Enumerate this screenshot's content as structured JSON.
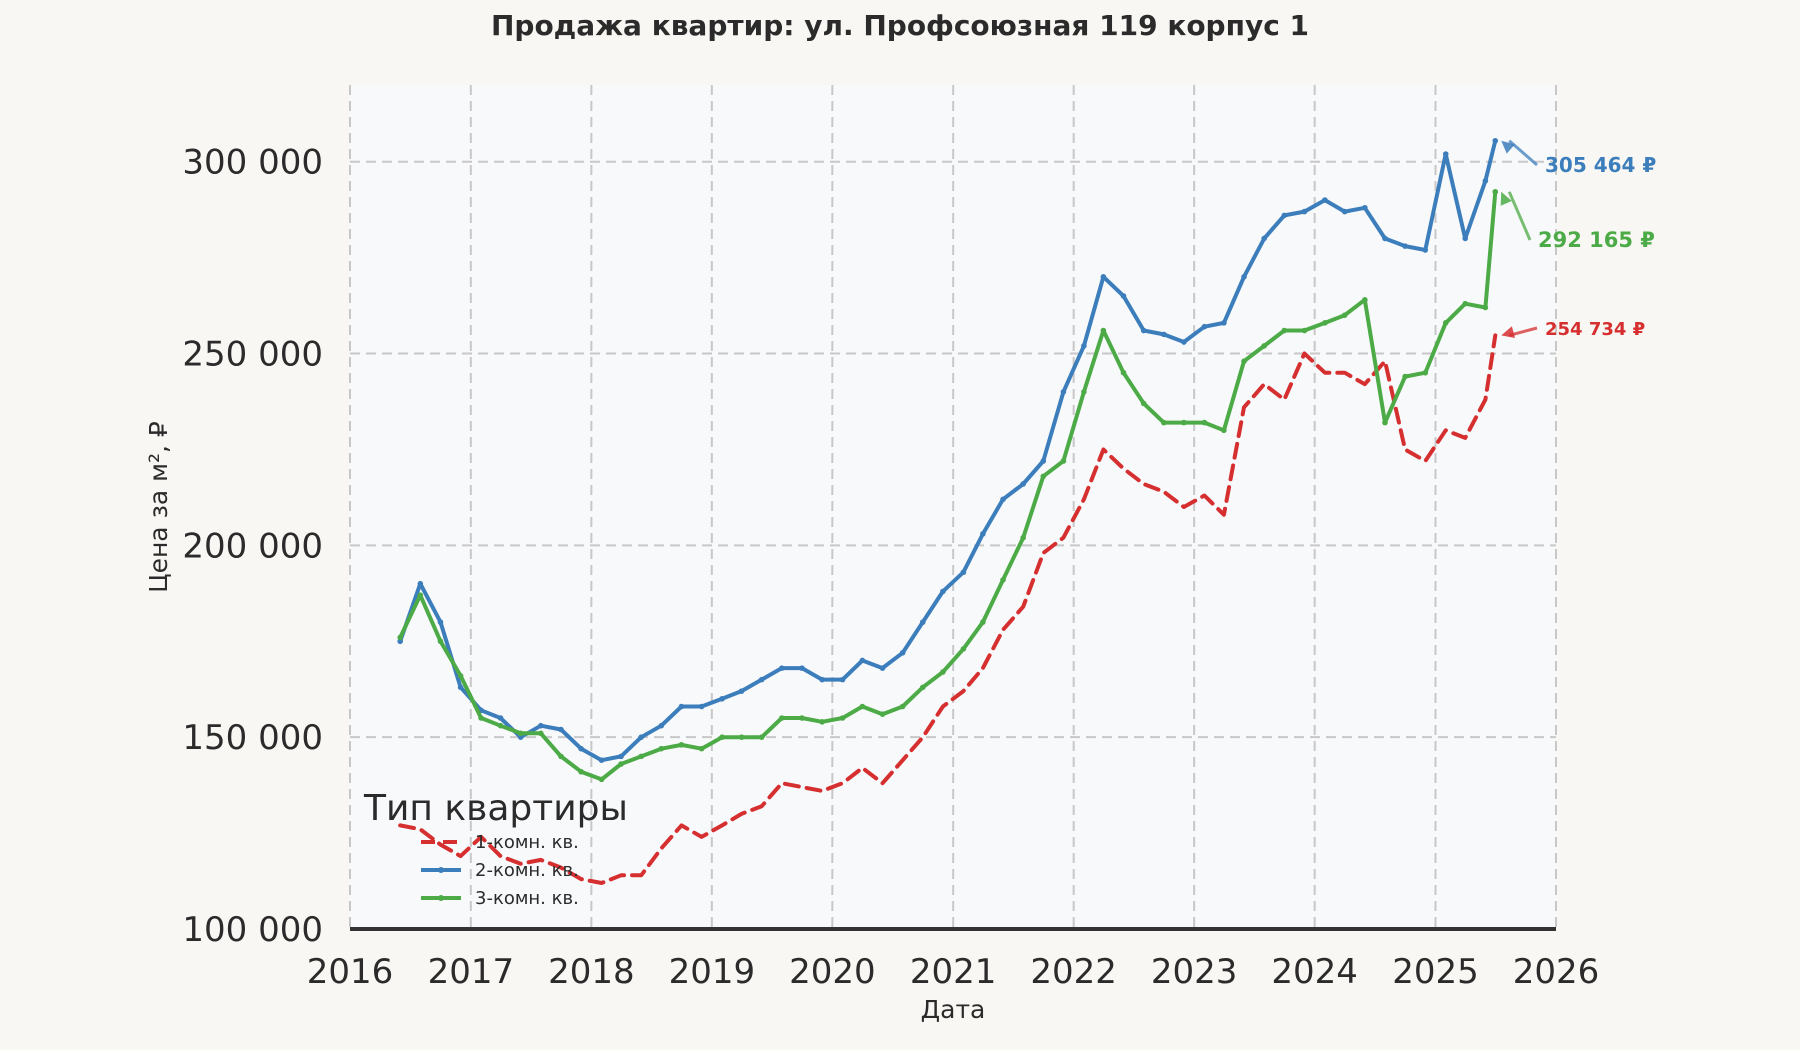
{
  "chart_data": {
    "type": "line",
    "title": "Продажа квартир: ул. Профсоюзная 119 корпус 1",
    "xlabel": "Дата",
    "ylabel": "Цена за м², ₽",
    "xlim": [
      "2016-01-01",
      "2026-01-01"
    ],
    "ylim": [
      100000,
      320000
    ],
    "x_ticks": [
      "2016",
      "2017",
      "2018",
      "2019",
      "2020",
      "2021",
      "2022",
      "2023",
      "2024",
      "2025",
      "2026"
    ],
    "y_ticks": [
      "100 000",
      "150 000",
      "200 000",
      "250 000",
      "300 000"
    ],
    "y_tick_values": [
      100000,
      150000,
      200000,
      250000,
      300000
    ],
    "grid": true,
    "legend": {
      "title": "Тип квартиры",
      "placement": "lower-left",
      "entries": [
        "1-комн. кв.",
        "2-комн. кв.",
        "3-комн. кв."
      ]
    },
    "series": [
      {
        "name": "1-комн. кв.",
        "color": "#d62f30",
        "style": "dashed",
        "x": [
          "2016-06",
          "2016-08",
          "2016-10",
          "2016-12",
          "2017-02",
          "2017-04",
          "2017-06",
          "2017-08",
          "2017-10",
          "2017-12",
          "2018-02",
          "2018-04",
          "2018-06",
          "2018-08",
          "2018-10",
          "2018-12",
          "2019-02",
          "2019-04",
          "2019-06",
          "2019-08",
          "2019-10",
          "2019-12",
          "2020-02",
          "2020-04",
          "2020-06",
          "2020-08",
          "2020-10",
          "2020-12",
          "2021-02",
          "2021-04",
          "2021-06",
          "2021-08",
          "2021-10",
          "2021-12",
          "2022-02",
          "2022-04",
          "2022-06",
          "2022-08",
          "2022-10",
          "2022-12",
          "2023-02",
          "2023-04",
          "2023-06",
          "2023-08",
          "2023-10",
          "2023-12",
          "2024-02",
          "2024-04",
          "2024-06",
          "2024-08",
          "2024-10",
          "2024-12",
          "2025-02",
          "2025-04",
          "2025-06",
          "2025-07"
        ],
        "y": [
          127000,
          126000,
          122000,
          119000,
          124000,
          119000,
          117000,
          118000,
          116000,
          113000,
          112000,
          114000,
          114000,
          121000,
          127000,
          124000,
          127000,
          130000,
          132000,
          138000,
          137000,
          136000,
          138000,
          142000,
          138000,
          144000,
          150000,
          158000,
          162000,
          168000,
          178000,
          184000,
          198000,
          202000,
          212000,
          225000,
          220000,
          216000,
          214000,
          210000,
          213000,
          208000,
          236000,
          242000,
          238000,
          250000,
          245000,
          245000,
          242000,
          248000,
          225000,
          222000,
          230000,
          228000,
          238000,
          254734
        ]
      },
      {
        "name": "2-комн. кв.",
        "color": "#3c7ebc",
        "style": "solid",
        "x": [
          "2016-06",
          "2016-08",
          "2016-10",
          "2016-12",
          "2017-02",
          "2017-04",
          "2017-06",
          "2017-08",
          "2017-10",
          "2017-12",
          "2018-02",
          "2018-04",
          "2018-06",
          "2018-08",
          "2018-10",
          "2018-12",
          "2019-02",
          "2019-04",
          "2019-06",
          "2019-08",
          "2019-10",
          "2019-12",
          "2020-02",
          "2020-04",
          "2020-06",
          "2020-08",
          "2020-10",
          "2020-12",
          "2021-02",
          "2021-04",
          "2021-06",
          "2021-08",
          "2021-10",
          "2021-12",
          "2022-02",
          "2022-04",
          "2022-06",
          "2022-08",
          "2022-10",
          "2022-12",
          "2023-02",
          "2023-04",
          "2023-06",
          "2023-08",
          "2023-10",
          "2023-12",
          "2024-02",
          "2024-04",
          "2024-06",
          "2024-08",
          "2024-10",
          "2024-12",
          "2025-02",
          "2025-04",
          "2025-06",
          "2025-07"
        ],
        "y": [
          175000,
          190000,
          180000,
          163000,
          157000,
          155000,
          150000,
          153000,
          152000,
          147000,
          144000,
          145000,
          150000,
          153000,
          158000,
          158000,
          160000,
          162000,
          165000,
          168000,
          168000,
          165000,
          165000,
          170000,
          168000,
          172000,
          180000,
          188000,
          193000,
          203000,
          212000,
          216000,
          222000,
          240000,
          252000,
          270000,
          265000,
          256000,
          255000,
          253000,
          257000,
          258000,
          270000,
          280000,
          286000,
          287000,
          290000,
          287000,
          288000,
          280000,
          278000,
          277000,
          302000,
          280000,
          295000,
          305464
        ]
      },
      {
        "name": "3-комн. кв.",
        "color": "#4cab46",
        "style": "solid",
        "x": [
          "2016-06",
          "2016-08",
          "2016-10",
          "2016-12",
          "2017-02",
          "2017-04",
          "2017-06",
          "2017-08",
          "2017-10",
          "2017-12",
          "2018-02",
          "2018-04",
          "2018-06",
          "2018-08",
          "2018-10",
          "2018-12",
          "2019-02",
          "2019-04",
          "2019-06",
          "2019-08",
          "2019-10",
          "2019-12",
          "2020-02",
          "2020-04",
          "2020-06",
          "2020-08",
          "2020-10",
          "2020-12",
          "2021-02",
          "2021-04",
          "2021-06",
          "2021-08",
          "2021-10",
          "2021-12",
          "2022-02",
          "2022-04",
          "2022-06",
          "2022-08",
          "2022-10",
          "2022-12",
          "2023-02",
          "2023-04",
          "2023-06",
          "2023-08",
          "2023-10",
          "2023-12",
          "2024-02",
          "2024-04",
          "2024-06",
          "2024-08",
          "2024-10",
          "2024-12",
          "2025-02",
          "2025-04",
          "2025-06",
          "2025-07"
        ],
        "y": [
          176000,
          187000,
          175000,
          166000,
          155000,
          153000,
          151000,
          151000,
          145000,
          141000,
          139000,
          143000,
          145000,
          147000,
          148000,
          147000,
          150000,
          150000,
          150000,
          155000,
          155000,
          154000,
          155000,
          158000,
          156000,
          158000,
          163000,
          167000,
          173000,
          180000,
          191000,
          202000,
          218000,
          222000,
          240000,
          256000,
          245000,
          237000,
          232000,
          232000,
          232000,
          230000,
          248000,
          252000,
          256000,
          256000,
          258000,
          260000,
          264000,
          232000,
          244000,
          245000,
          258000,
          263000,
          262000,
          292165
        ]
      }
    ],
    "annotations": [
      {
        "text": "305 464 ₽",
        "color": "#3c7ebc"
      },
      {
        "text": "292 165 ₽",
        "color": "#4cab46"
      },
      {
        "text": "254 734 ₽",
        "color": "#d62f30"
      }
    ]
  }
}
